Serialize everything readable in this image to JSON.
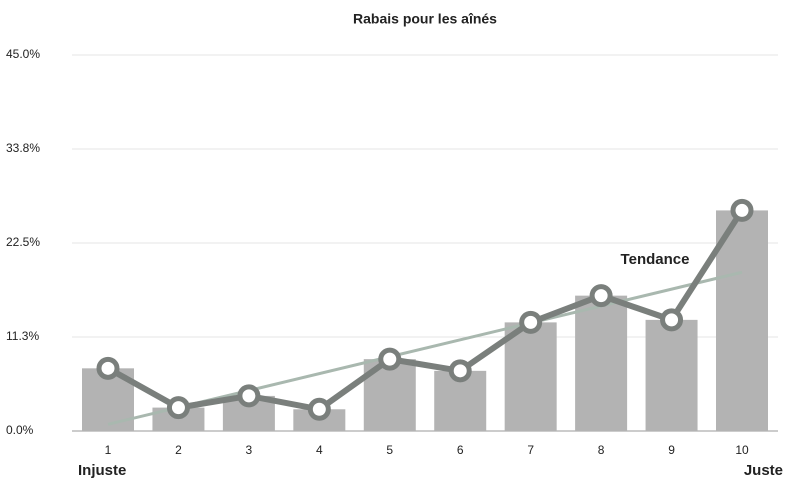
{
  "chart_data": {
    "type": "bar-line",
    "title": "Rabais pour les aînés",
    "categories": [
      "1",
      "2",
      "3",
      "4",
      "5",
      "6",
      "7",
      "8",
      "9",
      "10"
    ],
    "series": [
      {
        "type": "bar",
        "color": "#b3b3b3",
        "values": [
          7.5,
          2.8,
          4.2,
          2.6,
          8.6,
          7.2,
          13.0,
          16.2,
          13.3,
          26.4
        ]
      },
      {
        "type": "line",
        "color": "#7a7f7c",
        "values": [
          7.5,
          2.8,
          4.2,
          2.6,
          8.6,
          7.2,
          13.0,
          16.2,
          13.3,
          26.4
        ]
      }
    ],
    "trendline": {
      "label": "Tendance",
      "color": "#a9b8af",
      "values": [
        0.8,
        19.0
      ]
    },
    "end_labels": [
      "Injuste",
      "Juste"
    ],
    "ylim": [
      0,
      45
    ],
    "yticks": [
      {
        "value": 0,
        "label": "0.0%"
      },
      {
        "value": 11.25,
        "label": "11.3%"
      },
      {
        "value": 22.5,
        "label": "22.5%"
      },
      {
        "value": 33.75,
        "label": "33.8%"
      },
      {
        "value": 45,
        "label": "45.0%"
      }
    ],
    "grid": true
  }
}
